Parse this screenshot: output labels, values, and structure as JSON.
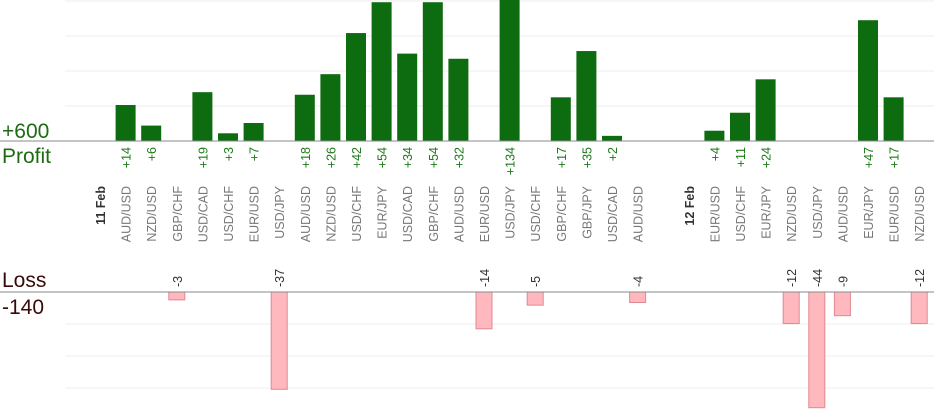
{
  "chart_data": {
    "type": "bar",
    "title": "",
    "profit_axis": {
      "label": "Profit",
      "value_label": "+600"
    },
    "loss_axis": {
      "label": "Loss",
      "value_label": "-140"
    },
    "colors": {
      "profit": "#0d6b10",
      "loss": "#ffb8bd",
      "profit_text": "#1e7a1a",
      "loss_text": "#333333",
      "category_text": "#777777",
      "date_text": "#333333"
    },
    "columns": [
      {
        "kind": "date",
        "label": "11 Feb"
      },
      {
        "kind": "pair",
        "label": "AUD/USD",
        "value": 14
      },
      {
        "kind": "pair",
        "label": "NZD/USD",
        "value": 6
      },
      {
        "kind": "pair",
        "label": "GBP/CHF",
        "value": -3
      },
      {
        "kind": "pair",
        "label": "USD/CAD",
        "value": 19
      },
      {
        "kind": "pair",
        "label": "USD/CHF",
        "value": 3
      },
      {
        "kind": "pair",
        "label": "EUR/USD",
        "value": 7
      },
      {
        "kind": "pair",
        "label": "USD/JPY",
        "value": -37
      },
      {
        "kind": "pair",
        "label": "AUD/USD",
        "value": 18
      },
      {
        "kind": "pair",
        "label": "NZD/USD",
        "value": 26
      },
      {
        "kind": "pair",
        "label": "USD/CHF",
        "value": 42
      },
      {
        "kind": "pair",
        "label": "EUR/JPY",
        "value": 54
      },
      {
        "kind": "pair",
        "label": "USD/CAD",
        "value": 34
      },
      {
        "kind": "pair",
        "label": "GBP/CHF",
        "value": 54
      },
      {
        "kind": "pair",
        "label": "AUD/USD",
        "value": 32
      },
      {
        "kind": "pair",
        "label": "EUR/USD",
        "value": -14
      },
      {
        "kind": "pair",
        "label": "USD/JPY",
        "value": 134
      },
      {
        "kind": "pair",
        "label": "USD/CHF",
        "value": -5
      },
      {
        "kind": "pair",
        "label": "GBP/CHF",
        "value": 17
      },
      {
        "kind": "pair",
        "label": "GBP/JPY",
        "value": 35
      },
      {
        "kind": "pair",
        "label": "USD/CAD",
        "value": 2
      },
      {
        "kind": "pair",
        "label": "AUD/USD",
        "value": -4
      },
      {
        "kind": "gap",
        "label": ""
      },
      {
        "kind": "date",
        "label": "12 Feb"
      },
      {
        "kind": "pair",
        "label": "EUR/USD",
        "value": 4
      },
      {
        "kind": "pair",
        "label": "USD/CHF",
        "value": 11
      },
      {
        "kind": "pair",
        "label": "EUR/JPY",
        "value": 24
      },
      {
        "kind": "pair",
        "label": "NZD/USD",
        "value": -12
      },
      {
        "kind": "pair",
        "label": "USD/JPY",
        "value": -44
      },
      {
        "kind": "pair",
        "label": "AUD/USD",
        "value": -9
      },
      {
        "kind": "pair",
        "label": "EUR/JPY",
        "value": 47
      },
      {
        "kind": "pair",
        "label": "EUR/USD",
        "value": 17
      },
      {
        "kind": "pair",
        "label": "NZD/USD",
        "value": -12
      }
    ]
  }
}
